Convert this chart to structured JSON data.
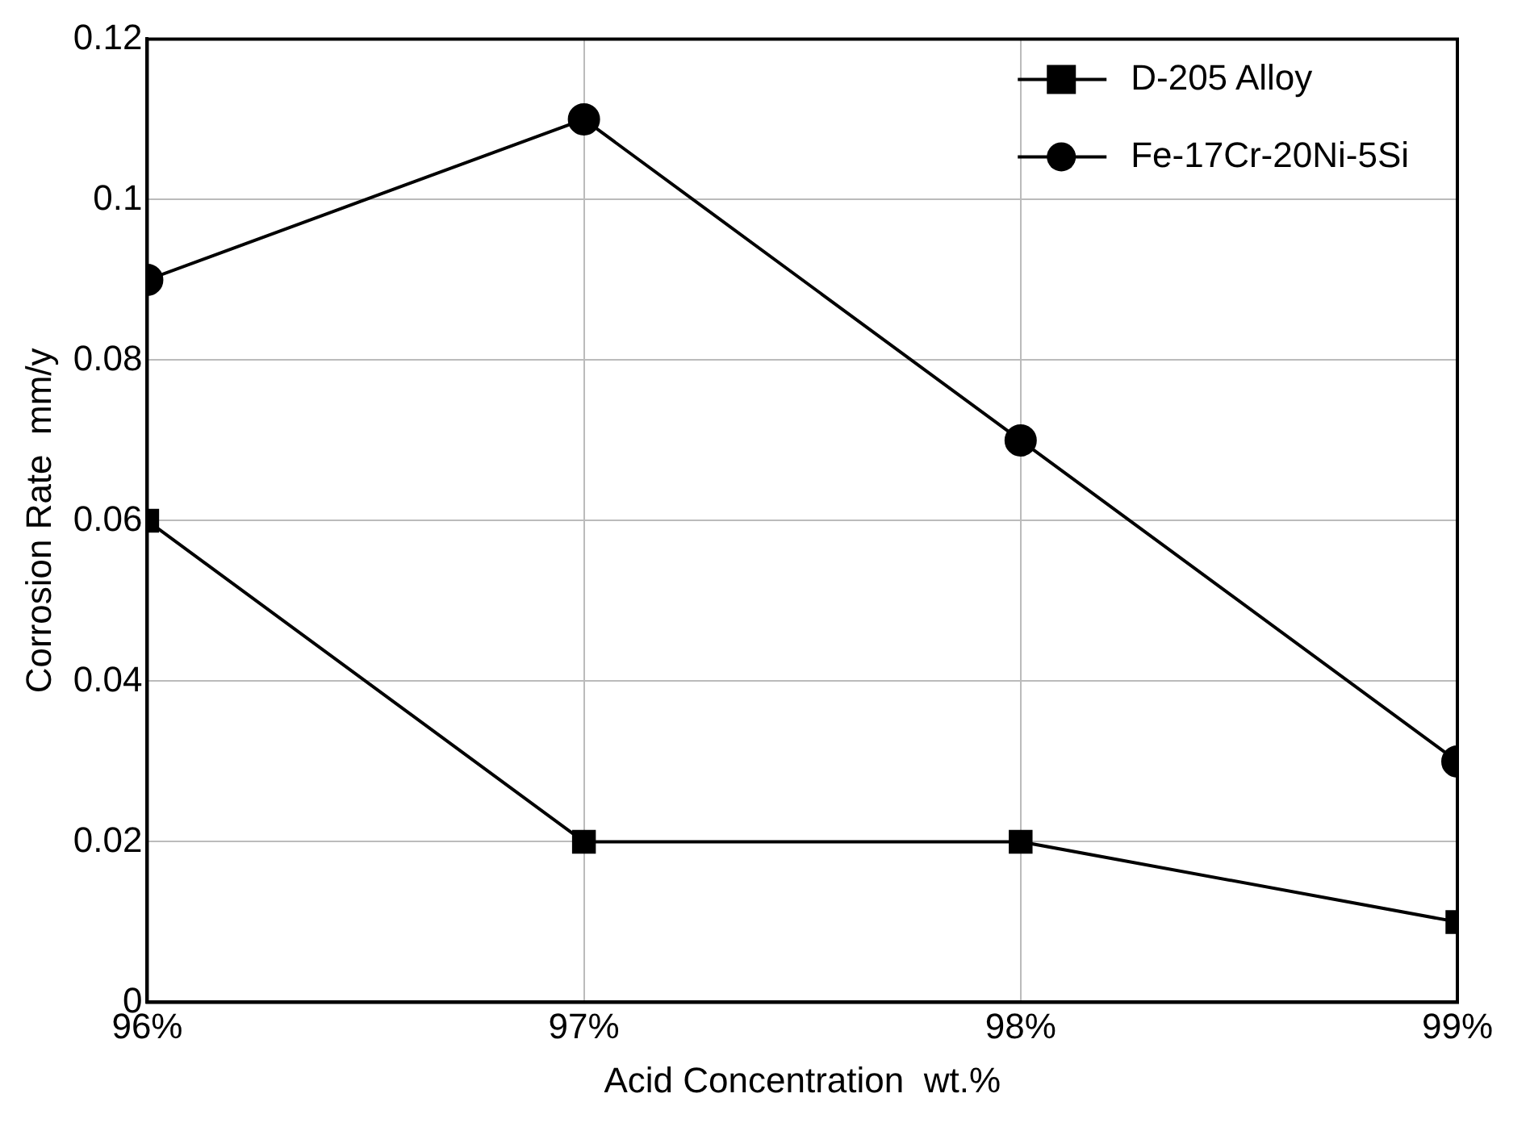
{
  "chart_data": {
    "type": "line",
    "xlabel": "Acid Concentration  wt.%",
    "ylabel": "Corrosion Rate  mm/y",
    "x": [
      96,
      97,
      98,
      99
    ],
    "xlim": [
      96,
      99
    ],
    "xticks": [
      {
        "value": 96,
        "label": "96%"
      },
      {
        "value": 97,
        "label": "97%"
      },
      {
        "value": 98,
        "label": "98%"
      },
      {
        "value": 99,
        "label": "99%"
      }
    ],
    "ylim": [
      0,
      0.12
    ],
    "yticks": [
      0,
      0.02,
      0.04,
      0.06,
      0.08,
      0.1,
      0.12
    ],
    "series": [
      {
        "name": "D-205 Alloy",
        "color": "#000000",
        "marker": "square",
        "values": [
          0.06,
          0.02,
          0.02,
          0.01
        ]
      },
      {
        "name": "Fe-17Cr-20Ni-5Si",
        "color": "#000000",
        "marker": "circle",
        "values": [
          0.09,
          0.11,
          0.07,
          0.03
        ]
      }
    ],
    "grid": true,
    "legend": "top right",
    "line_style": "solid"
  }
}
